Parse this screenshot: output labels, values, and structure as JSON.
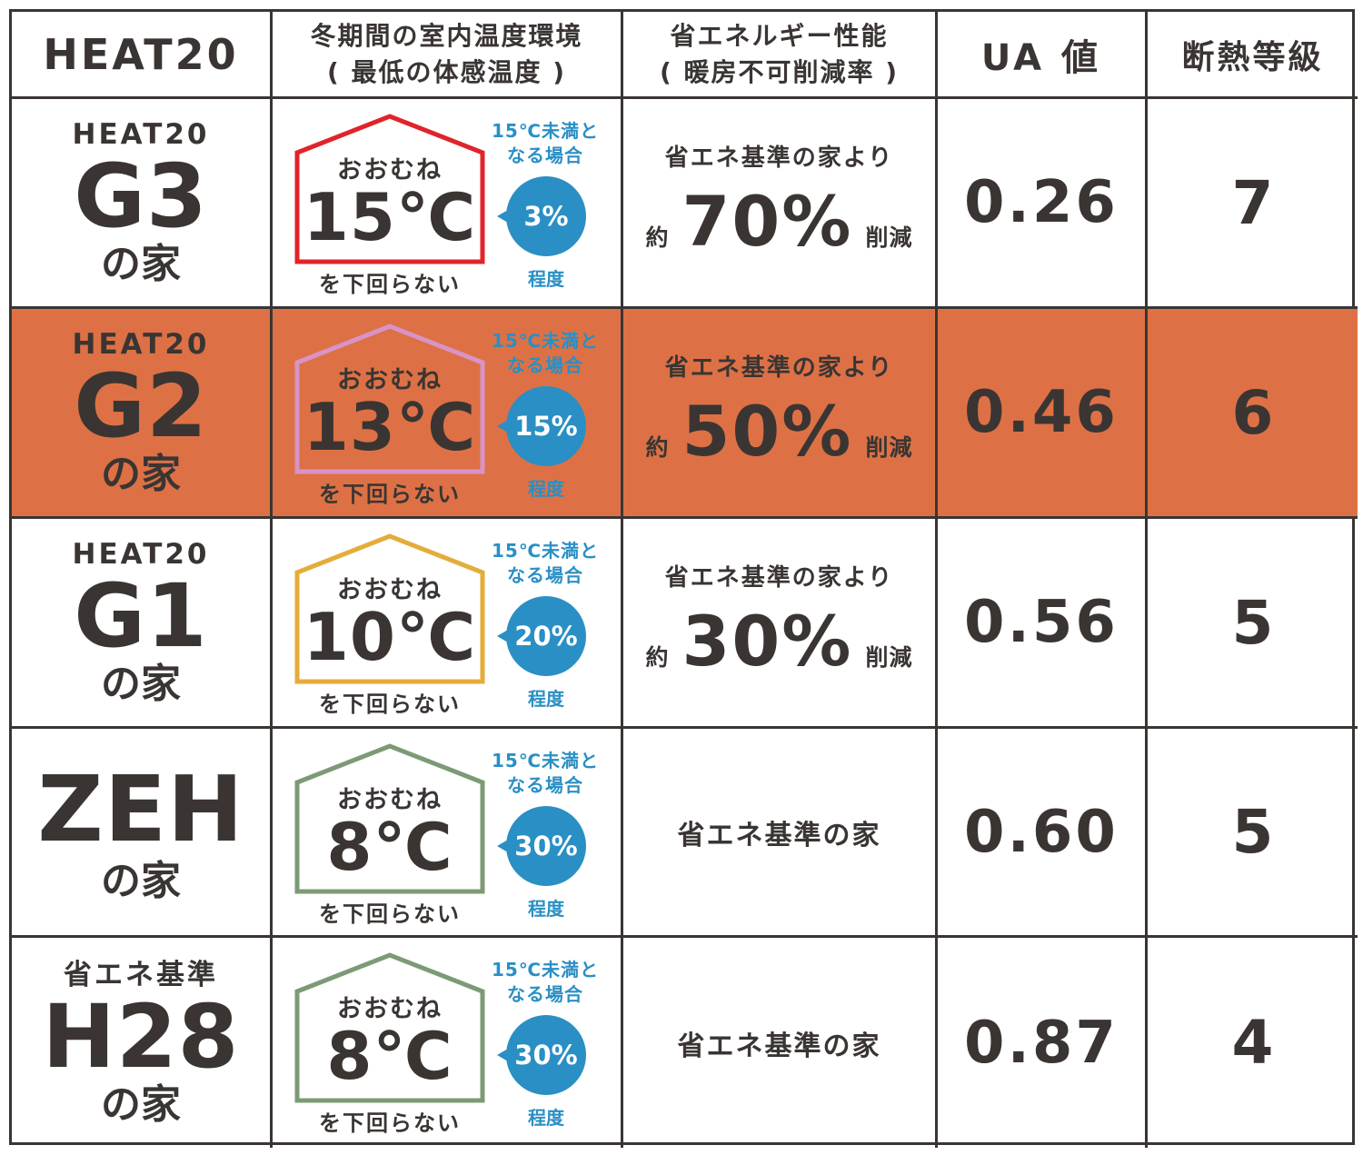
{
  "header": {
    "standard": "HEAT20",
    "temperature_line1": "冬期間の室内温度環境",
    "temperature_line2": "( 最低の体感温度 )",
    "energy_line1": "省エネルギー性能",
    "energy_line2": "( 暖房不可削減率 )",
    "ua": "UA 値",
    "grade": "断熱等級"
  },
  "rows": [
    {
      "top": "HEAT20",
      "code": "G3",
      "suffix": "の家",
      "house_color": "#e0242a",
      "approx": "おおむね",
      "temp": "15℃",
      "below": "を下回らない",
      "note1": "15℃未満と",
      "note2": "なる場合",
      "pct": "3%",
      "degree": "程度",
      "energy_base": "省エネ基準の家より",
      "energy_approx": "約",
      "energy_val": "70%",
      "energy_reduce": "削減",
      "ua": "0.26",
      "grade": "7"
    },
    {
      "top": "HEAT20",
      "code": "G2",
      "suffix": "の家",
      "house_color": "#d993c6",
      "approx": "おおむね",
      "temp": "13℃",
      "below": "を下回らない",
      "note1": "15℃未満と",
      "note2": "なる場合",
      "pct": "15%",
      "degree": "程度",
      "energy_base": "省エネ基準の家より",
      "energy_approx": "約",
      "energy_val": "50%",
      "energy_reduce": "削減",
      "ua": "0.46",
      "grade": "6",
      "highlight_color": "#dd7145"
    },
    {
      "top": "HEAT20",
      "code": "G1",
      "suffix": "の家",
      "house_color": "#e4ac3a",
      "approx": "おおむね",
      "temp": "10℃",
      "below": "を下回らない",
      "note1": "15℃未満と",
      "note2": "なる場合",
      "pct": "20%",
      "degree": "程度",
      "energy_base": "省エネ基準の家より",
      "energy_approx": "約",
      "energy_val": "30%",
      "energy_reduce": "削減",
      "ua": "0.56",
      "grade": "5"
    },
    {
      "top": "",
      "code": "ZEH",
      "suffix": "の家",
      "house_color": "#7d9a76",
      "approx": "おおむね",
      "temp": "8℃",
      "below": "を下回らない",
      "note1": "15℃未満と",
      "note2": "なる場合",
      "pct": "30%",
      "degree": "程度",
      "energy_only": "省エネ基準の家",
      "ua": "0.60",
      "grade": "5"
    },
    {
      "top": "省エネ基準",
      "code": "H28",
      "suffix": "の家",
      "house_color": "#7d9a76",
      "approx": "おおむね",
      "temp": "8℃",
      "below": "を下回らない",
      "note1": "15℃未満と",
      "note2": "なる場合",
      "pct": "30%",
      "degree": "程度",
      "energy_only": "省エネ基準の家",
      "ua": "0.87",
      "grade": "4"
    }
  ]
}
